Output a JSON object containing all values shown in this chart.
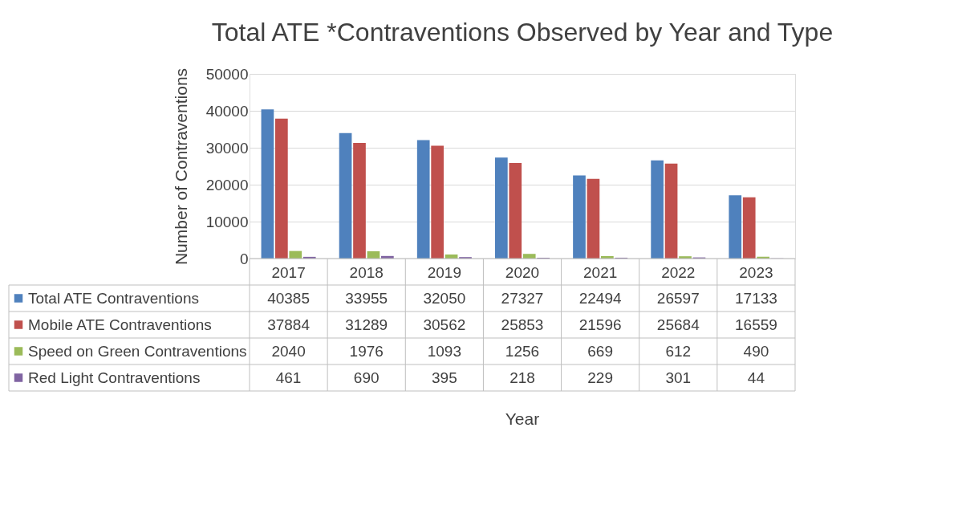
{
  "chart_data": {
    "type": "bar",
    "title": "Total ATE *Contraventions Observed by Year and Type",
    "annotations": [
      "Year"
    ],
    "ylabel": "Number of Contraventions",
    "categories": [
      "2017",
      "2018",
      "2019",
      "2020",
      "2021",
      "2022",
      "2023"
    ],
    "series": [
      {
        "name": "Total ATE Contraventions",
        "color": "#4f81bd",
        "values": [
          40385,
          33955,
          32050,
          27327,
          22494,
          26597,
          17133
        ]
      },
      {
        "name": "Mobile ATE Contraventions",
        "color": "#c0504d",
        "values": [
          37884,
          31289,
          30562,
          25853,
          21596,
          25684,
          16559
        ]
      },
      {
        "name": "Speed on Green Contraventions",
        "color": "#9bbb59",
        "values": [
          2040,
          1976,
          1093,
          1256,
          669,
          612,
          490
        ]
      },
      {
        "name": "Red Light Contraventions",
        "color": "#8064a2",
        "values": [
          461,
          690,
          395,
          218,
          229,
          301,
          44
        ]
      }
    ],
    "ylim": [
      0,
      50000
    ],
    "yticks": [
      0,
      10000,
      20000,
      30000,
      40000,
      50000
    ],
    "grid": "y",
    "legend": "bottom",
    "data_labels": true
  }
}
